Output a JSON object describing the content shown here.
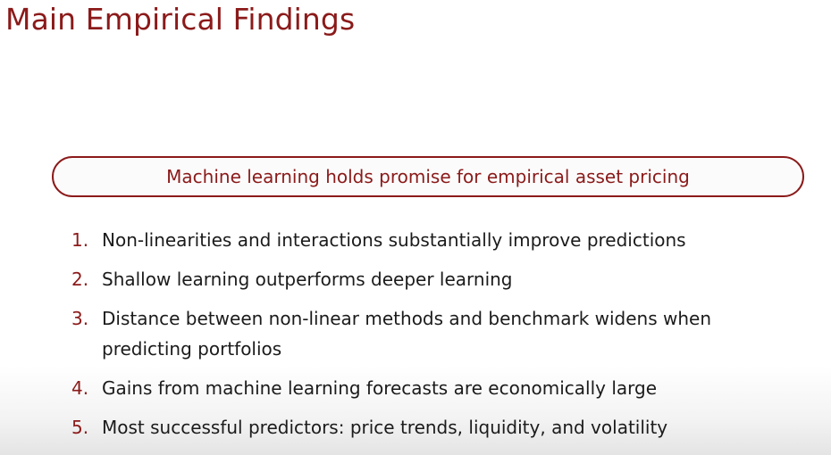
{
  "slide": {
    "title": "Main Empirical Findings",
    "callout": "Machine learning holds promise for empirical asset pricing",
    "findings": [
      {
        "num": "1.",
        "text": "Non-linearities and interactions substantially improve predictions"
      },
      {
        "num": "2.",
        "text": "Shallow learning outperforms deeper learning"
      },
      {
        "num": "3.",
        "text": "Distance between non-linear methods and benchmark widens when predicting portfolios"
      },
      {
        "num": "4.",
        "text": "Gains from machine learning forecasts are economically large"
      },
      {
        "num": "5.",
        "text": "Most successful predictors: price trends, liquidity, and volatility"
      }
    ]
  },
  "colors": {
    "accent": "#8b1a1a",
    "text": "#1b1b1b"
  }
}
